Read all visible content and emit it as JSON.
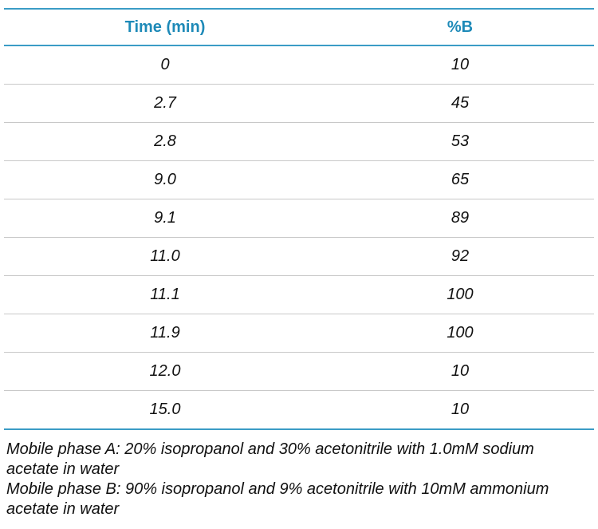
{
  "table": {
    "header": [
      "Time (min)",
      "%B"
    ],
    "rows": [
      [
        "0",
        "10"
      ],
      [
        "2.7",
        "45"
      ],
      [
        "2.8",
        "53"
      ],
      [
        "9.0",
        "65"
      ],
      [
        "9.1",
        "89"
      ],
      [
        "11.0",
        "92"
      ],
      [
        "11.1",
        "100"
      ],
      [
        "11.9",
        "100"
      ],
      [
        "12.0",
        "10"
      ],
      [
        "15.0",
        "10"
      ]
    ]
  },
  "notes": [
    "Mobile phase A: 20% isopropanol and 30% acetonitrile with 1.0mM sodium acetate in water",
    "Mobile phase B: 90% isopropanol and 9% acetonitrile with 10mM ammonium acetate in water"
  ]
}
